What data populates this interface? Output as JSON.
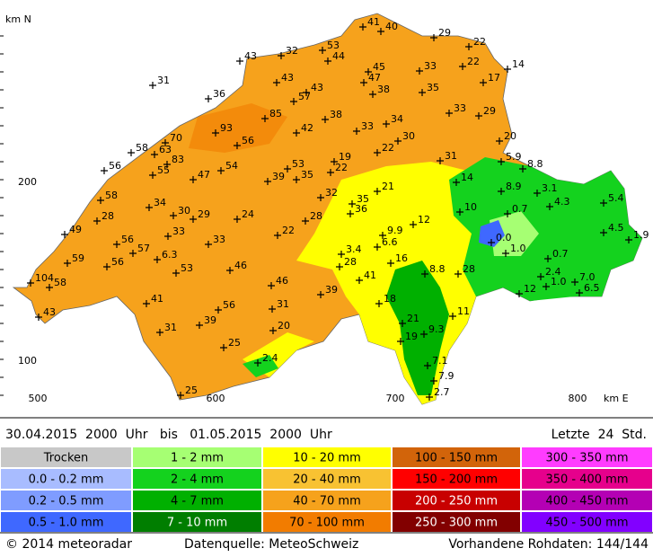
{
  "map": {
    "axis_labels": {
      "north": "km N",
      "east": "km E"
    },
    "y_ticks": [
      "200",
      "100"
    ],
    "x_ticks": [
      "500",
      "600",
      "700",
      "800"
    ],
    "stations": [
      "41",
      "40",
      "29",
      "22",
      "53",
      "32",
      "43",
      "44",
      "45",
      "33",
      "22",
      "14",
      "31",
      "43",
      "47",
      "17",
      "36",
      "57",
      "43",
      "38",
      "35",
      "85",
      "38",
      "33",
      "29",
      "34",
      "93",
      "42",
      "33",
      "30",
      "70",
      "56",
      "20",
      "58",
      "63",
      "22",
      "83",
      "53",
      "19",
      "31",
      "5.9",
      "56",
      "55",
      "54",
      "22",
      "8.8",
      "47",
      "39",
      "35",
      "14",
      "8.9",
      "3.1",
      "21",
      "32",
      "35",
      "4.3",
      "58",
      "34",
      "36",
      "10",
      "0.7",
      "5.4",
      "30",
      "29",
      "24",
      "28",
      "28",
      "12",
      "49",
      "33",
      "22",
      "4.5",
      "1.9",
      "9.9",
      "6.6",
      "56",
      "33",
      "0.0",
      "57",
      "1.0",
      "3.4",
      "6.3",
      "59",
      "56",
      "16",
      "28",
      "0.7",
      "46",
      "53",
      "8.8",
      "28",
      "2.4",
      "7.0",
      "1.0",
      "104",
      "58",
      "41",
      "46",
      "6.5",
      "12",
      "39",
      "18",
      "41",
      "56",
      "31",
      "11",
      "43",
      "21",
      "20",
      "39",
      "31",
      "9.3",
      "19",
      "25",
      "2.4",
      "7.1",
      "7.9",
      "2.7",
      "25"
    ]
  },
  "period": {
    "text": "30.04.2015  2000  Uhr   bis   01.05.2015  2000  Uhr",
    "window": "Letzte  24  Std."
  },
  "legend": [
    {
      "label": "Trocken",
      "color": "#c8c8c8"
    },
    {
      "label": "0.0 - 0.2 mm",
      "color": "#a8bcff"
    },
    {
      "label": "0.2 - 0.5 mm",
      "color": "#7f9cff"
    },
    {
      "label": "0.5 - 1.0 mm",
      "color": "#3f68ff"
    },
    {
      "label": "1 - 2 mm",
      "color": "#a6ff73"
    },
    {
      "label": "2 - 4 mm",
      "color": "#14d21e"
    },
    {
      "label": "4 - 7 mm",
      "color": "#00b000"
    },
    {
      "label": "7 - 10 mm",
      "color": "#007e00"
    },
    {
      "label": "10 - 20 mm",
      "color": "#ffff00"
    },
    {
      "label": "20 - 40 mm",
      "color": "#f8c232"
    },
    {
      "label": "40 - 70 mm",
      "color": "#f6a21c"
    },
    {
      "label": "70 - 100 mm",
      "color": "#f27c00"
    },
    {
      "label": "100 - 150 mm",
      "color": "#d2640a"
    },
    {
      "label": "150 - 200 mm",
      "color": "#ff0000"
    },
    {
      "label": "200 - 250 mm",
      "color": "#c80000"
    },
    {
      "label": "250 - 300 mm",
      "color": "#820000"
    },
    {
      "label": "300 - 350 mm",
      "color": "#ff3cff"
    },
    {
      "label": "350 - 400 mm",
      "color": "#e6008c"
    },
    {
      "label": "400 - 450 mm",
      "color": "#b400b4"
    },
    {
      "label": "450 - 500 mm",
      "color": "#8200ff"
    }
  ],
  "footer": {
    "copyright": "© 2014 meteoradar",
    "source": "Datenquelle: MeteoSchweiz",
    "raw": "Vorhandene Rohdaten: 144/144"
  }
}
